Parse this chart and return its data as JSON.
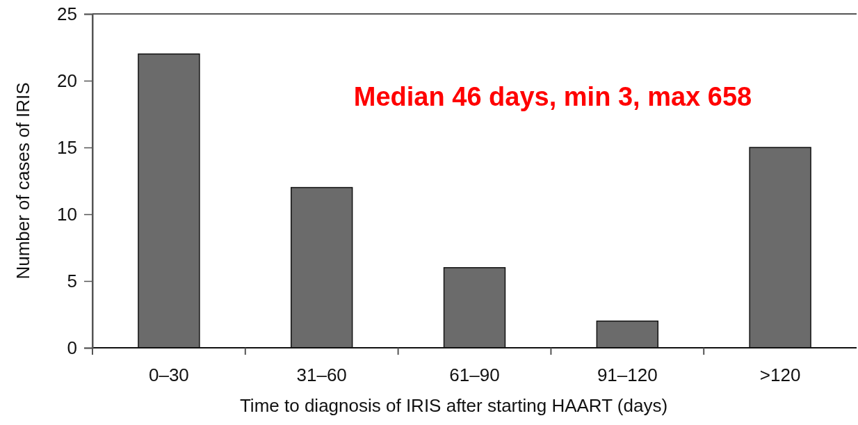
{
  "chart_data": {
    "type": "bar",
    "xlabel": "Time to diagnosis of IRIS after starting HAART (days)",
    "ylabel": "Number of cases of IRIS",
    "categories": [
      "0–30",
      "31–60",
      "61–90",
      "91–120",
      ">120"
    ],
    "values": [
      22,
      12,
      6,
      2,
      15
    ],
    "color": "#6b6b6b",
    "ylim": [
      0,
      25
    ],
    "yticks": [
      0,
      5,
      10,
      15,
      20,
      25
    ],
    "annotations": [
      "Median 46 days, min 3, max 658"
    ]
  }
}
